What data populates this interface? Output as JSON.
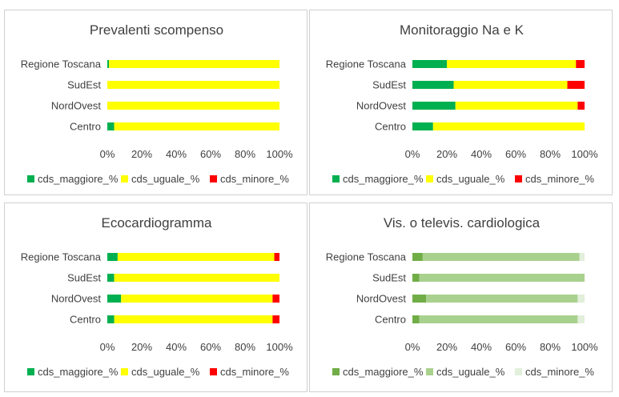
{
  "chart_data": [
    {
      "type": "bar",
      "orientation": "horizontal",
      "stacked": "percent",
      "title": "Prevalenti scompenso",
      "categories": [
        "Regione Toscana",
        "SudEst",
        "NordOvest",
        "Centro"
      ],
      "series": [
        {
          "name": "cds_maggiore_%",
          "color": "#00b050",
          "values": [
            1,
            0,
            0,
            4
          ]
        },
        {
          "name": "cds_uguale_%",
          "color": "#ffff00",
          "values": [
            99,
            100,
            100,
            96
          ]
        },
        {
          "name": "cds_minore_%",
          "color": "#ff0000",
          "values": [
            0,
            0,
            0,
            0
          ]
        }
      ],
      "xticks": [
        "0%",
        "20%",
        "40%",
        "60%",
        "80%",
        "100%"
      ],
      "xlim": [
        0,
        100
      ],
      "legend": "bottom"
    },
    {
      "type": "bar",
      "orientation": "horizontal",
      "stacked": "percent",
      "title": "Monitoraggio Na e K",
      "categories": [
        "Regione Toscana",
        "SudEst",
        "NordOvest",
        "Centro"
      ],
      "series": [
        {
          "name": "cds_maggiore_%",
          "color": "#00b050",
          "values": [
            20,
            24,
            25,
            12
          ]
        },
        {
          "name": "cds_uguale_%",
          "color": "#ffff00",
          "values": [
            75,
            66,
            71,
            88
          ]
        },
        {
          "name": "cds_minore_%",
          "color": "#ff0000",
          "values": [
            5,
            10,
            4,
            0
          ]
        }
      ],
      "xticks": [
        "0%",
        "20%",
        "40%",
        "60%",
        "80%",
        "100%"
      ],
      "xlim": [
        0,
        100
      ],
      "legend": "bottom"
    },
    {
      "type": "bar",
      "orientation": "horizontal",
      "stacked": "percent",
      "title": "Ecocardiogramma",
      "categories": [
        "Regione Toscana",
        "SudEst",
        "NordOvest",
        "Centro"
      ],
      "series": [
        {
          "name": "cds_maggiore_%",
          "color": "#00b050",
          "values": [
            6,
            4,
            8,
            4
          ]
        },
        {
          "name": "cds_uguale_%",
          "color": "#ffff00",
          "values": [
            91,
            96,
            88,
            92
          ]
        },
        {
          "name": "cds_minore_%",
          "color": "#ff0000",
          "values": [
            3,
            0,
            4,
            4
          ]
        }
      ],
      "xticks": [
        "0%",
        "20%",
        "40%",
        "60%",
        "80%",
        "100%"
      ],
      "xlim": [
        0,
        100
      ],
      "legend": "bottom"
    },
    {
      "type": "bar",
      "orientation": "horizontal",
      "stacked": "percent",
      "title": "Vis. o televis. cardiologica",
      "categories": [
        "Regione Toscana",
        "SudEst",
        "NordOvest",
        "Centro"
      ],
      "series": [
        {
          "name": "cds_maggiore_%",
          "color": "#70ad47",
          "values": [
            6,
            4,
            8,
            4
          ]
        },
        {
          "name": "cds_uguale_%",
          "color": "#a9d18e",
          "values": [
            91,
            96,
            88,
            92
          ]
        },
        {
          "name": "cds_minore_%",
          "color": "#e2efda",
          "values": [
            3,
            0,
            4,
            4
          ]
        }
      ],
      "xticks": [
        "0%",
        "20%",
        "40%",
        "60%",
        "80%",
        "100%"
      ],
      "xlim": [
        0,
        100
      ],
      "legend": "bottom"
    }
  ]
}
